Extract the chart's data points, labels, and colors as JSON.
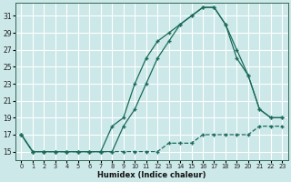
{
  "xlabel": "Humidex (Indice chaleur)",
  "bg_color": "#cce8e8",
  "grid_color": "#ffffff",
  "line_color": "#1a6b5a",
  "xlim": [
    -0.5,
    23.5
  ],
  "ylim": [
    14.0,
    32.5
  ],
  "xticks": [
    0,
    1,
    2,
    3,
    4,
    5,
    6,
    7,
    8,
    9,
    10,
    11,
    12,
    13,
    14,
    15,
    16,
    17,
    18,
    19,
    20,
    21,
    22,
    23
  ],
  "yticks": [
    15,
    17,
    19,
    21,
    23,
    25,
    27,
    29,
    31
  ],
  "line1_x": [
    0,
    1,
    2,
    3,
    4,
    5,
    6,
    7,
    8,
    9,
    10,
    11,
    12,
    13,
    14,
    15,
    16,
    17,
    18,
    19,
    20,
    21,
    22,
    23
  ],
  "line1_y": [
    17,
    15,
    15,
    15,
    15,
    15,
    15,
    15,
    15,
    18,
    20,
    23,
    26,
    28,
    30,
    31,
    32,
    32,
    30,
    27,
    24,
    20,
    19,
    19
  ],
  "line2_x": [
    0,
    1,
    2,
    3,
    4,
    5,
    6,
    7,
    8,
    9,
    10,
    11,
    12,
    13,
    14,
    15,
    16,
    17,
    18,
    19,
    20,
    21,
    22,
    23
  ],
  "line2_y": [
    17,
    15,
    15,
    15,
    15,
    15,
    15,
    15,
    18,
    19,
    23,
    26,
    28,
    29,
    30,
    31,
    32,
    32,
    30,
    26,
    24,
    20,
    19,
    19
  ],
  "line3_x": [
    0,
    1,
    2,
    3,
    4,
    5,
    6,
    7,
    8,
    9,
    10,
    11,
    12,
    13,
    14,
    15,
    16,
    17,
    18,
    19,
    20,
    21,
    22,
    23
  ],
  "line3_y": [
    17,
    15,
    15,
    15,
    15,
    15,
    15,
    15,
    15,
    15,
    15,
    15,
    15,
    16,
    16,
    16,
    17,
    17,
    17,
    17,
    17,
    18,
    18,
    18
  ]
}
